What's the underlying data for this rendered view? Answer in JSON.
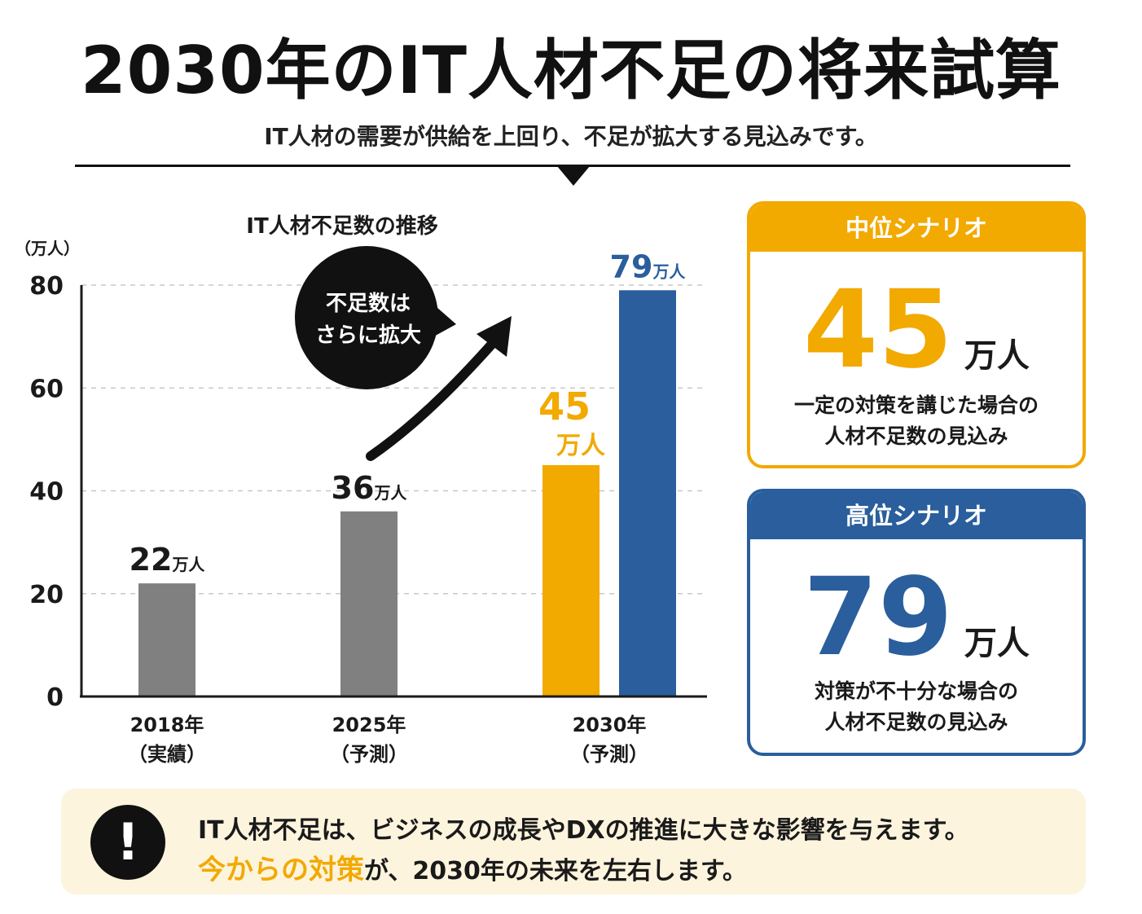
{
  "header": {
    "title": "2030年のIT人材不足の将来試算",
    "subtitle": "IT人材の需要が供給を上回り、不足が拡大する見込みです。"
  },
  "chart_data": {
    "type": "bar",
    "title": "IT人材不足数の推移",
    "ylabel": "（万人）",
    "xlabel": "",
    "ylim": [
      0,
      80
    ],
    "yticks": [
      0,
      20,
      40,
      60,
      80
    ],
    "grid": true,
    "categories": [
      {
        "line1": "2018年",
        "line2": "（実績）"
      },
      {
        "line1": "2025年",
        "line2": "（予測）"
      },
      {
        "line1": "2030年",
        "line2": "（予測）"
      }
    ],
    "bars": [
      {
        "category": 0,
        "value": 22,
        "color": "#808080",
        "label_num": "22",
        "label_unit": "万人",
        "label_color": "#1a1a1a",
        "label_layout": "inline"
      },
      {
        "category": 1,
        "value": 36,
        "color": "#808080",
        "label_num": "36",
        "label_unit": "万人",
        "label_color": "#1a1a1a",
        "label_layout": "inline"
      },
      {
        "category": 2,
        "value": 45,
        "color": "#f2a900",
        "label_num": "45",
        "label_unit": "万人",
        "label_color": "#f2a900",
        "label_layout": "stacked"
      },
      {
        "category": 2,
        "value": 79,
        "color": "#2a5e9c",
        "label_num": "79",
        "label_unit": "万人",
        "label_color": "#2a5e9c",
        "label_layout": "inline"
      }
    ],
    "callout": {
      "line1": "不足数は",
      "line2": "さらに拡大"
    }
  },
  "scenarios": {
    "mid": {
      "title": "中位シナリオ",
      "value": "45",
      "unit": "万人",
      "desc1": "一定の対策を講じた場合の",
      "desc2": "人材不足数の見込み",
      "color": "#f2a900"
    },
    "high": {
      "title": "高位シナリオ",
      "value": "79",
      "unit": "万人",
      "desc1": "対策が不十分な場合の",
      "desc2": "人材不足数の見込み",
      "color": "#2a5e9c"
    }
  },
  "banner": {
    "icon": "!",
    "icon_name": "exclamation-icon",
    "line1": "IT人材不足は、ビジネスの成長やDXの推進に大きな影響を与えます。",
    "line2_highlight": "今からの対策",
    "line2_rest": "が、2030年の未来を左右します。"
  }
}
